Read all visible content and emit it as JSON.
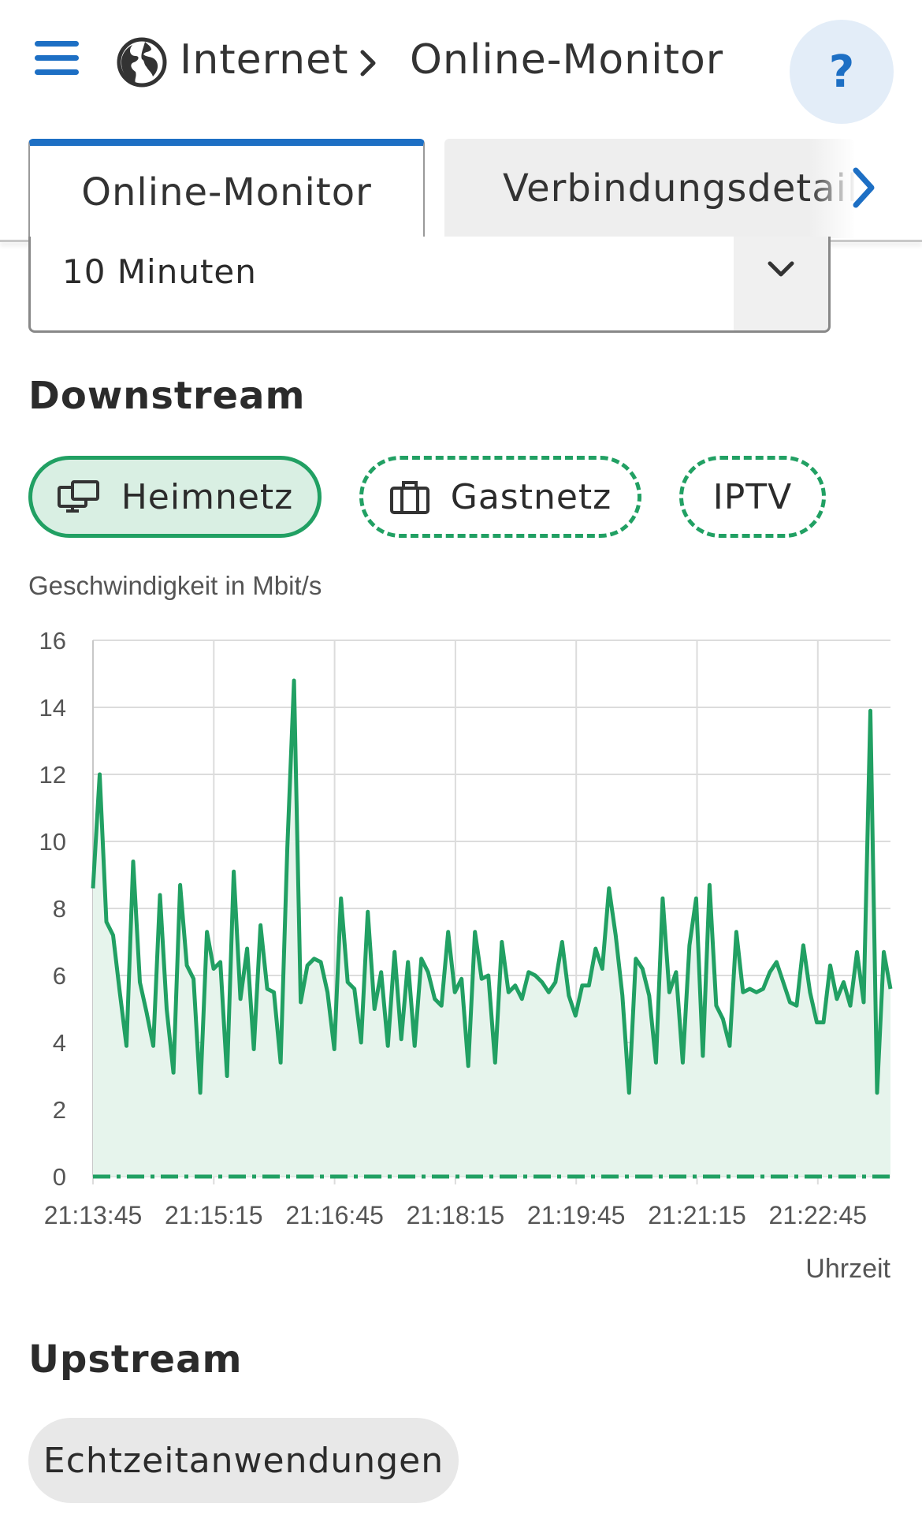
{
  "header": {
    "breadcrumb": [
      "Internet",
      "Online-Monitor"
    ],
    "help_label": "?"
  },
  "tabs": [
    {
      "label": "Online-Monitor",
      "active": true
    },
    {
      "label": "Verbindungsdetails",
      "active": false
    }
  ],
  "time_range": {
    "value": "10 Minuten"
  },
  "downstream": {
    "title": "Downstream",
    "filters": [
      {
        "label": "Heimnetz",
        "icon": "monitor-icon",
        "selected": true
      },
      {
        "label": "Gastnetz",
        "icon": "briefcase-icon",
        "selected": false
      },
      {
        "label": "IPTV",
        "icon": "",
        "selected": false
      }
    ]
  },
  "upstream": {
    "title": "Upstream",
    "filters": [
      {
        "label": "Echtzeitanwendungen"
      }
    ]
  },
  "colors": {
    "accent": "#1d6fc4",
    "series": "#21a063",
    "fill": "#e6f4ec"
  },
  "chart_data": {
    "type": "area",
    "ylabel": "Geschwindigkeit in Mbit/s",
    "xlabel": "Uhrzeit",
    "ylim": [
      0,
      16
    ],
    "yticks": [
      0,
      2,
      4,
      6,
      8,
      10,
      12,
      14,
      16
    ],
    "xticks": [
      "21:13:45",
      "21:15:15",
      "21:16:45",
      "21:18:15",
      "21:19:45",
      "21:21:15",
      "21:22:45"
    ],
    "grid": true,
    "series": [
      {
        "values": [
          8.6,
          12.0,
          7.6,
          7.2,
          5.5,
          3.9,
          9.4,
          5.8,
          4.9,
          3.9,
          8.4,
          5.0,
          3.1,
          8.7,
          6.3,
          5.9,
          2.5,
          7.3,
          6.2,
          6.4,
          3.0,
          9.1,
          5.3,
          6.8,
          3.8,
          7.5,
          5.6,
          5.5,
          3.4,
          9.8,
          14.8,
          5.2,
          6.3,
          6.5,
          6.4,
          5.5,
          3.8,
          8.3,
          5.8,
          5.6,
          4.0,
          7.9,
          5.0,
          6.1,
          3.9,
          6.7,
          4.1,
          6.4,
          3.9,
          6.5,
          6.1,
          5.3,
          5.1,
          7.3,
          5.5,
          5.9,
          3.3,
          7.3,
          5.9,
          6.0,
          3.4,
          7.0,
          5.5,
          5.7,
          5.3,
          6.1,
          6.0,
          5.8,
          5.5,
          5.8,
          7.0,
          5.4,
          4.8,
          5.7,
          5.7,
          6.8,
          6.2,
          8.6,
          7.2,
          5.4,
          2.5,
          6.5,
          6.2,
          5.4,
          3.4,
          8.3,
          5.5,
          6.1,
          3.4,
          6.9,
          8.3,
          3.6,
          8.7,
          5.1,
          4.7,
          3.9,
          7.3,
          5.5,
          5.6,
          5.5,
          5.6,
          6.1,
          6.4,
          5.8,
          5.2,
          5.1,
          6.9,
          5.5,
          4.6,
          4.6,
          6.3,
          5.3,
          5.8,
          5.1,
          6.7,
          5.2,
          13.9,
          2.5,
          6.7,
          5.6
        ]
      },
      {
        "values": [
          0,
          0,
          0,
          0,
          0,
          0,
          0,
          0,
          0,
          0,
          0,
          0,
          0,
          0,
          0,
          0,
          0,
          0,
          0,
          0,
          0,
          0,
          0,
          0,
          0,
          0,
          0,
          0,
          0,
          0,
          0,
          0,
          0,
          0,
          0,
          0,
          0,
          0,
          0,
          0,
          0,
          0,
          0,
          0,
          0,
          0,
          0,
          0,
          0,
          0,
          0,
          0,
          0,
          0,
          0,
          0,
          0,
          0,
          0,
          0,
          0,
          0,
          0,
          0,
          0,
          0,
          0,
          0,
          0,
          0,
          0,
          0,
          0,
          0,
          0,
          0,
          0,
          0,
          0,
          0,
          0,
          0,
          0,
          0,
          0,
          0,
          0,
          0,
          0,
          0,
          0,
          0,
          0,
          0,
          0,
          0,
          0,
          0,
          0,
          0,
          0,
          0,
          0,
          0,
          0,
          0,
          0,
          0,
          0,
          0,
          0,
          0,
          0,
          0,
          0,
          0,
          0,
          0,
          0,
          0
        ]
      }
    ]
  }
}
